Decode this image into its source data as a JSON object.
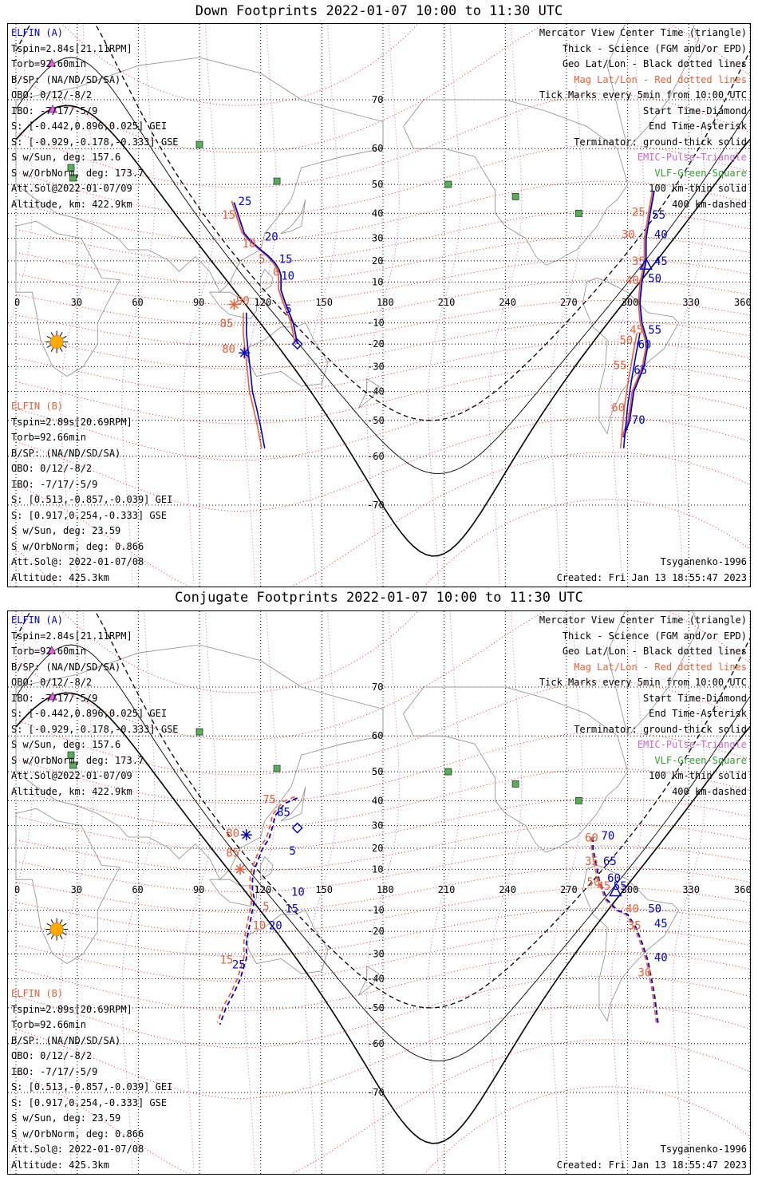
{
  "panels": [
    {
      "title": "Down Footprints 2022-01-07 10:00 to 11:30 UTC",
      "mode": "down",
      "elfin_a": {
        "label": "ELFIN (A)",
        "lines": [
          "Tspin=2.84s[21.11RPM]",
          "Torb=92.60min",
          "B/SP: (NA/ND/SD/SA)",
          "OBO: 0/12/-8/2",
          "IBO: -7/17/-5/9",
          "S: [-0.442,0.896,0.025] GEI",
          "S: [-0.929,-0.178,-0.333] GSE",
          "S w/Sun, deg: 157.6",
          "S w/OrbNorm, deg: 173.7",
          "Att.Sol@2022-01-07/09",
          "Altitude, km: 422.9km"
        ]
      },
      "elfin_b": {
        "label": "ELFIN (B)",
        "lines": [
          "Tspin=2.89s[20.69RPM]",
          "Torb=92.66min",
          "B/SP: (NA/ND/SD/SA)",
          "OBO: 0/12/-8/2",
          "IBO: -7/17/-5/9",
          "S: [0.513,-0.857,-0.039] GEI",
          "S: [0.917,0.254,-0.333] GSE",
          "S w/Sun, deg: 23.59",
          "S w/OrbNorm, deg: 0.866",
          "Att.Sol@: 2022-01-07/08",
          "Altitude: 425.3km"
        ]
      },
      "model": "Tsyganenko-1996",
      "created": "Created: Fri Jan 13 18:55:47 2023",
      "a_track": [
        [
          107,
          44
        ],
        [
          110,
          37
        ],
        [
          112,
          32
        ],
        [
          115,
          29
        ],
        [
          120,
          25
        ],
        [
          124,
          22
        ],
        [
          127,
          19
        ],
        [
          129,
          16
        ],
        [
          130,
          13
        ],
        [
          130,
          10
        ],
        [
          130,
          6
        ],
        [
          132,
          0
        ],
        [
          134,
          -5
        ],
        [
          136,
          -10
        ],
        [
          137,
          -15
        ],
        [
          138,
          -20
        ]
      ],
      "a_ticks": [
        {
          "lon": 109,
          "lat": 43,
          "v": "25"
        },
        {
          "lon": 122,
          "lat": 29,
          "v": "20"
        },
        {
          "lon": 129,
          "lat": 19,
          "v": "15"
        },
        {
          "lon": 130,
          "lat": 11,
          "v": "10"
        },
        {
          "lon": 132,
          "lat": -5,
          "v": "5"
        }
      ],
      "a_mag": [
        {
          "lon": 101,
          "lat": 38,
          "v": "15"
        },
        {
          "lon": 111,
          "lat": 26,
          "v": "10"
        },
        {
          "lon": 119,
          "lat": 19,
          "v": "5"
        },
        {
          "lon": 126,
          "lat": 13,
          "v": "0"
        },
        {
          "lon": 108,
          "lat": -1,
          "v": "90"
        },
        {
          "lon": 100,
          "lat": -12,
          "v": "85"
        },
        {
          "lon": 101,
          "lat": -24,
          "v": "80"
        }
      ],
      "a_seg2": [
        [
          313,
          48
        ],
        [
          311,
          40
        ],
        [
          310,
          35
        ],
        [
          309,
          30
        ],
        [
          309,
          20
        ],
        [
          307,
          10
        ],
        [
          306,
          0
        ],
        [
          307,
          -10
        ],
        [
          310,
          -20
        ],
        [
          308,
          -30
        ],
        [
          303,
          -40
        ],
        [
          301,
          -50
        ],
        [
          298,
          -55
        ]
      ],
      "a2_ticks": [
        {
          "lon": 312,
          "lat": 38,
          "v": "55"
        },
        {
          "lon": 313,
          "lat": 30,
          "v": "40"
        },
        {
          "lon": 313,
          "lat": 18,
          "v": "45"
        },
        {
          "lon": 310,
          "lat": 10,
          "v": "50"
        },
        {
          "lon": 310,
          "lat": -15,
          "v": "55"
        },
        {
          "lon": 305,
          "lat": -22,
          "v": "60"
        },
        {
          "lon": 303,
          "lat": -33,
          "v": "65"
        },
        {
          "lon": 302,
          "lat": -51,
          "v": "70"
        }
      ],
      "a2_mag": [
        {
          "lon": 302,
          "lat": 39,
          "v": "25"
        },
        {
          "lon": 297,
          "lat": 30,
          "v": "30"
        },
        {
          "lon": 302,
          "lat": 18,
          "v": "35"
        },
        {
          "lon": 299,
          "lat": 9,
          "v": "40"
        },
        {
          "lon": 301,
          "lat": -15,
          "v": "45"
        },
        {
          "lon": 296,
          "lat": -20,
          "v": "50"
        },
        {
          "lon": 293,
          "lat": -31,
          "v": "55"
        },
        {
          "lon": 292,
          "lat": -47,
          "v": "60"
        }
      ],
      "b_track": [
        [
          113,
          -5
        ],
        [
          113,
          -15
        ],
        [
          114,
          -24
        ],
        [
          115,
          -32
        ],
        [
          116,
          -40
        ],
        [
          118,
          -46
        ],
        [
          120,
          -52
        ],
        [
          122,
          -58
        ]
      ],
      "b_seg2": [
        [
          298,
          -58
        ],
        [
          300,
          -45
        ],
        [
          302,
          -35
        ],
        [
          304,
          -25
        ],
        [
          306,
          -15
        ]
      ],
      "start_a": [
        138,
        -20
      ],
      "end_a": [
        112,
        -24
      ],
      "center_a": [
        309,
        18
      ],
      "b_start": [
        107,
        -1
      ],
      "b_end": [
        112,
        -24
      ],
      "conj": false
    },
    {
      "title": "Conjugate Footprints 2022-01-07 10:00 to 11:30 UTC",
      "mode": "conj",
      "elfin_a": {
        "label": "ELFIN (A)",
        "lines": [
          "Tspin=2.84s[21.11RPM]",
          "Torb=92.60min",
          "B/SP: (NA/ND/SD/SA)",
          "OBO: 0/12/-8/2",
          "IBO: -7/17/-5/9",
          "S: [-0.442,0.896,0.025] GEI",
          "S: [-0.929,-0.178,-0.333] GSE",
          "S w/Sun, deg: 157.6",
          "S w/OrbNorm, deg: 173.7",
          "Att.Sol@2022-01-07/09",
          "Altitude, km: 422.9km"
        ]
      },
      "elfin_b": {
        "label": "ELFIN (B)",
        "lines": [
          "Tspin=2.89s[20.69RPM]",
          "Torb=92.66min",
          "B/SP: (NA/ND/SD/SA)",
          "OBO: 0/12/-8/2",
          "IBO: -7/17/-5/9",
          "S: [0.513,-0.857,-0.039] GEI",
          "S: [0.917,0.254,-0.333] GSE",
          "S w/Sun, deg: 23.59",
          "S w/OrbNorm, deg: 0.866",
          "Att.Sol@: 2022-01-07/08",
          "Altitude: 425.3km"
        ]
      },
      "model": "Tsyganenko-1996",
      "created": "Created: Fri Jan 13 18:55:47 2023",
      "a_track": [
        [
          138,
          41
        ],
        [
          132,
          39
        ],
        [
          127,
          34
        ],
        [
          126,
          30
        ],
        [
          124,
          24
        ],
        [
          121,
          20
        ],
        [
          119,
          15
        ],
        [
          117,
          10
        ],
        [
          116,
          5
        ],
        [
          116,
          0
        ],
        [
          117,
          -5
        ],
        [
          116,
          -10
        ],
        [
          115,
          -15
        ],
        [
          114,
          -20
        ],
        [
          113,
          -25
        ],
        [
          113,
          -32
        ],
        [
          110,
          -40
        ],
        [
          107,
          -45
        ],
        [
          103,
          -50
        ],
        [
          100,
          -55
        ]
      ],
      "a_ticks": [
        {
          "lon": 128,
          "lat": 34,
          "v": "85"
        },
        {
          "lon": 134,
          "lat": 17,
          "v": "5"
        },
        {
          "lon": 135,
          "lat": -3,
          "v": "10"
        },
        {
          "lon": 132,
          "lat": -11,
          "v": "15"
        },
        {
          "lon": 124,
          "lat": -19,
          "v": "20"
        },
        {
          "lon": 106,
          "lat": -36,
          "v": "25"
        }
      ],
      "a_mag": [
        {
          "lon": 121,
          "lat": 39,
          "v": "75"
        },
        {
          "lon": 103,
          "lat": 25,
          "v": "80"
        },
        {
          "lon": 103,
          "lat": 16,
          "v": "85"
        },
        {
          "lon": 121,
          "lat": -10,
          "v": "5"
        },
        {
          "lon": 116,
          "lat": -19,
          "v": "10"
        },
        {
          "lon": 100,
          "lat": -34,
          "v": "15"
        }
      ],
      "a_seg2": [
        [
          283,
          25
        ],
        [
          283,
          20
        ],
        [
          284,
          15
        ],
        [
          286,
          5
        ],
        [
          288,
          0
        ],
        [
          290,
          -5
        ],
        [
          295,
          -10
        ],
        [
          300,
          -12
        ],
        [
          304,
          -18
        ],
        [
          307,
          -25
        ],
        [
          310,
          -33
        ],
        [
          313,
          -45
        ],
        [
          315,
          -55
        ]
      ],
      "a2_ticks": [
        {
          "lon": 287,
          "lat": 24,
          "v": "70"
        },
        {
          "lon": 288,
          "lat": 12,
          "v": "65"
        },
        {
          "lon": 290,
          "lat": 4,
          "v": "60"
        },
        {
          "lon": 293,
          "lat": 0,
          "v": "55"
        },
        {
          "lon": 310,
          "lat": -11,
          "v": "50"
        },
        {
          "lon": 313,
          "lat": -18,
          "v": "45"
        },
        {
          "lon": 313,
          "lat": -33,
          "v": "40"
        }
      ],
      "a2_mag": [
        {
          "lon": 279,
          "lat": 23,
          "v": "60"
        },
        {
          "lon": 279,
          "lat": 12,
          "v": "35"
        },
        {
          "lon": 280,
          "lat": 2,
          "v": "50"
        },
        {
          "lon": 285,
          "lat": 0,
          "v": "45"
        },
        {
          "lon": 299,
          "lat": -11,
          "v": "40"
        },
        {
          "lon": 300,
          "lat": -19,
          "v": "35"
        },
        {
          "lon": 305,
          "lat": -39,
          "v": "30"
        }
      ],
      "b_track": [],
      "b_seg2": [],
      "start_a": [
        138,
        29
      ],
      "end_a": [
        113,
        26
      ],
      "center_a": [
        294,
        -1
      ],
      "b_start": [
        110,
        10
      ],
      "b_end": [
        113,
        26
      ],
      "conj": true
    }
  ],
  "legend_right": [
    {
      "text": "Mercator View Center Time (triangle)",
      "color": "#000000"
    },
    {
      "text": "Thick - Science (FGM and/or EPD)",
      "color": "#000000"
    },
    {
      "text": "Geo Lat/Lon - Black dotted lines",
      "color": "#000000"
    },
    {
      "text": "Mag Lat/Lon - Red dotted lines",
      "color": "#e8603a"
    },
    {
      "text": "Tick Marks every 5min from 10:00 UTC",
      "color": "#000000"
    },
    {
      "text": "Start Time-Diamond",
      "color": "#000000"
    },
    {
      "text": "End Time-Asterisk",
      "color": "#000000"
    },
    {
      "text": "Terminator: ground-thick solid",
      "color": "#000000"
    },
    {
      "text": "EMIC-Pulse-Triangle",
      "color": "#cc66cc"
    },
    {
      "text": "VLF-Green-Square",
      "color": "#2f9a2f"
    },
    {
      "text": "100 km-thin solid",
      "color": "#000000"
    },
    {
      "text": "400 km-dashed",
      "color": "#000000"
    }
  ],
  "axis": {
    "lon_ticks": [
      "0",
      "30",
      "60",
      "90",
      "120",
      "150",
      "180",
      "210",
      "240",
      "270",
      "300",
      "330",
      "360"
    ],
    "lat_ticks": [
      "70",
      "60",
      "50",
      "40",
      "30",
      "20",
      "10",
      "-10",
      "-20",
      "-30",
      "-40",
      "-50",
      "-60",
      "-70"
    ]
  },
  "colors": {
    "blue": "#0000cc",
    "mag": "#e8603a",
    "green": "#5aad5a",
    "grid": "#000000",
    "terminator": "#000000",
    "violet": "#cc44cc",
    "sun": "#ffaa00"
  },
  "stations": [
    [
      90,
      61
    ],
    [
      27,
      55
    ],
    [
      28,
      52
    ],
    [
      128,
      51
    ],
    [
      212,
      50
    ],
    [
      245,
      46
    ],
    [
      276,
      40
    ]
  ]
}
